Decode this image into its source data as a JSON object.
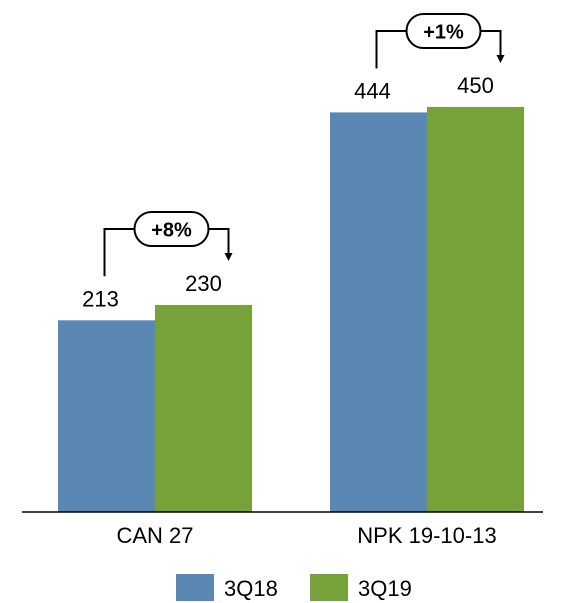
{
  "chart_data": {
    "type": "bar",
    "categories": [
      "CAN 27",
      "NPK 19-10-13"
    ],
    "series": [
      {
        "name": "3Q18",
        "values": [
          213,
          444
        ],
        "color": "#5b87b5"
      },
      {
        "name": "3Q19",
        "values": [
          230,
          450
        ],
        "color": "#77a23a"
      }
    ],
    "data_labels": [
      [
        "213",
        "444"
      ],
      [
        "230",
        "450"
      ]
    ],
    "change_labels": [
      "+8%",
      "+1%"
    ],
    "ylim": [
      0,
      480
    ],
    "grid": false,
    "legend": "bottom"
  }
}
